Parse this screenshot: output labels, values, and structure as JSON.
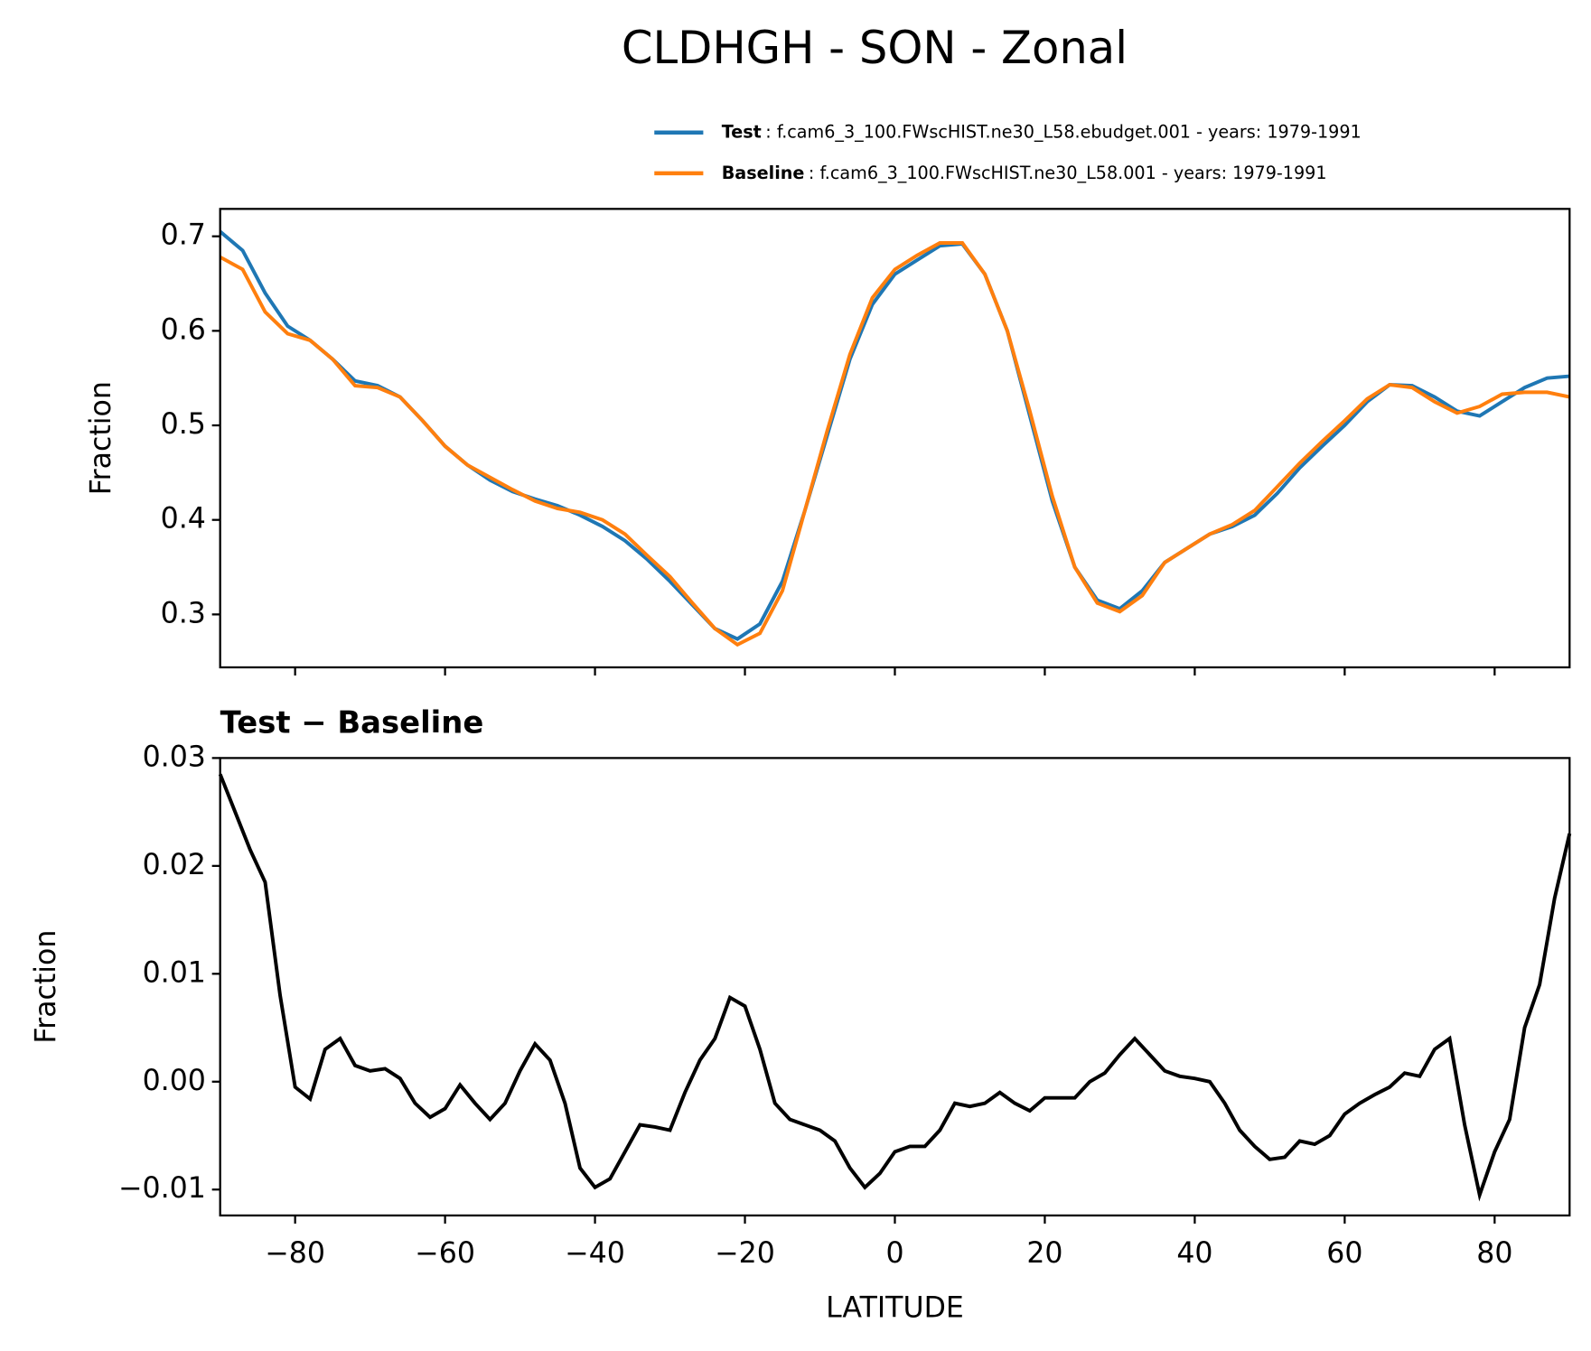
{
  "title": "CLDHGH - SON - Zonal",
  "chart_data": [
    {
      "type": "line",
      "ylabel": "Fraction",
      "legend": "upper right",
      "x": [
        -90,
        -87,
        -84,
        -81,
        -78,
        -75,
        -72,
        -69,
        -66,
        -63,
        -60,
        -57,
        -54,
        -51,
        -48,
        -45,
        -42,
        -39,
        -36,
        -33,
        -30,
        -27,
        -24,
        -21,
        -18,
        -15,
        -12,
        -9,
        -6,
        -3,
        0,
        3,
        6,
        9,
        12,
        15,
        18,
        21,
        24,
        27,
        30,
        33,
        36,
        39,
        42,
        45,
        48,
        51,
        54,
        57,
        60,
        63,
        66,
        69,
        72,
        75,
        78,
        81,
        84,
        87,
        90
      ],
      "series": [
        {
          "name": "Test",
          "description": ": f.cam6_3_100.FWscHIST.ne30_L58.ebudget.001 - years: 1979-1991",
          "color": "#1f77b4",
          "values": [
            0.705,
            0.685,
            0.64,
            0.605,
            0.59,
            0.57,
            0.547,
            0.542,
            0.53,
            0.505,
            0.478,
            0.458,
            0.442,
            0.43,
            0.422,
            0.415,
            0.405,
            0.393,
            0.378,
            0.358,
            0.335,
            0.31,
            0.285,
            0.274,
            0.29,
            0.335,
            0.41,
            0.49,
            0.57,
            0.628,
            0.66,
            0.675,
            0.69,
            0.692,
            0.66,
            0.6,
            0.51,
            0.42,
            0.35,
            0.315,
            0.306,
            0.325,
            0.355,
            0.37,
            0.385,
            0.393,
            0.405,
            0.428,
            0.455,
            0.478,
            0.5,
            0.525,
            0.543,
            0.542,
            0.53,
            0.515,
            0.51,
            0.525,
            0.54,
            0.55,
            0.552
          ]
        },
        {
          "name": "Baseline",
          "description": ": f.cam6_3_100.FWscHIST.ne30_L58.001 - years: 1979-1991",
          "color": "#ff7f0e",
          "values": [
            0.678,
            0.665,
            0.62,
            0.597,
            0.59,
            0.57,
            0.542,
            0.54,
            0.53,
            0.505,
            0.478,
            0.458,
            0.445,
            0.432,
            0.42,
            0.412,
            0.408,
            0.4,
            0.385,
            0.362,
            0.34,
            0.312,
            0.285,
            0.268,
            0.28,
            0.325,
            0.41,
            0.495,
            0.575,
            0.635,
            0.665,
            0.68,
            0.693,
            0.693,
            0.66,
            0.6,
            0.515,
            0.425,
            0.35,
            0.312,
            0.303,
            0.32,
            0.355,
            0.37,
            0.385,
            0.395,
            0.41,
            0.435,
            0.46,
            0.483,
            0.505,
            0.528,
            0.543,
            0.54,
            0.525,
            0.513,
            0.52,
            0.533,
            0.535,
            0.535,
            0.53
          ]
        }
      ],
      "xlim": [
        -90,
        90
      ],
      "xticks": [
        -80,
        -60,
        -40,
        -20,
        0,
        20,
        40,
        60,
        80
      ],
      "ylim": [
        0.244,
        0.729
      ],
      "yticks": [
        0.3,
        0.4,
        0.5,
        0.6,
        0.7
      ]
    },
    {
      "type": "line",
      "title": "Test − Baseline",
      "ylabel": "Fraction",
      "xlabel": "LATITUDE",
      "x": [
        -90,
        -88,
        -86,
        -84,
        -82,
        -80,
        -78,
        -76,
        -74,
        -72,
        -70,
        -68,
        -66,
        -64,
        -62,
        -60,
        -58,
        -56,
        -54,
        -52,
        -50,
        -48,
        -46,
        -44,
        -42,
        -40,
        -38,
        -36,
        -34,
        -32,
        -30,
        -28,
        -26,
        -24,
        -22,
        -20,
        -18,
        -16,
        -14,
        -12,
        -10,
        -8,
        -6,
        -4,
        -2,
        0,
        2,
        4,
        6,
        8,
        10,
        12,
        14,
        16,
        18,
        20,
        22,
        24,
        26,
        28,
        30,
        32,
        34,
        36,
        38,
        40,
        42,
        44,
        46,
        48,
        50,
        52,
        54,
        56,
        58,
        60,
        62,
        64,
        66,
        68,
        70,
        72,
        74,
        76,
        78,
        80,
        82,
        84,
        86,
        88,
        90
      ],
      "series": [
        {
          "color": "#000000",
          "values": [
            0.0285,
            0.025,
            0.0215,
            0.0185,
            0.008,
            -0.0005,
            -0.0016,
            0.003,
            0.004,
            0.0015,
            0.001,
            0.0012,
            0.0003,
            -0.002,
            -0.0033,
            -0.0025,
            -0.0003,
            -0.002,
            -0.0035,
            -0.002,
            0.001,
            0.0035,
            0.002,
            -0.002,
            -0.008,
            -0.0098,
            -0.009,
            -0.0065,
            -0.004,
            -0.0042,
            -0.0045,
            -0.001,
            0.002,
            0.004,
            0.0078,
            0.007,
            0.003,
            -0.002,
            -0.0035,
            -0.004,
            -0.0045,
            -0.0055,
            -0.008,
            -0.0098,
            -0.0085,
            -0.0065,
            -0.006,
            -0.006,
            -0.0045,
            -0.002,
            -0.0023,
            -0.002,
            -0.001,
            -0.002,
            -0.0027,
            -0.0015,
            -0.0015,
            -0.0015,
            0.0,
            0.0008,
            0.0025,
            0.004,
            0.0025,
            0.001,
            0.0005,
            0.0003,
            0.0,
            -0.002,
            -0.0045,
            -0.006,
            -0.0072,
            -0.007,
            -0.0055,
            -0.0058,
            -0.005,
            -0.003,
            -0.002,
            -0.0012,
            -0.0005,
            0.0008,
            0.0005,
            0.003,
            0.004,
            -0.004,
            -0.0105,
            -0.0065,
            -0.0035,
            0.005,
            0.009,
            0.017,
            0.023
          ]
        }
      ],
      "xlim": [
        -90,
        90
      ],
      "xticks": [
        {
          "value": -80,
          "label": "−80"
        },
        {
          "value": -60,
          "label": "−60"
        },
        {
          "value": -40,
          "label": "−40"
        },
        {
          "value": -20,
          "label": "−20"
        },
        0,
        20,
        40,
        60,
        80
      ],
      "ylim": [
        -0.0124,
        0.03
      ],
      "yticks": [
        {
          "value": -0.01,
          "label": "−0.01"
        },
        {
          "value": 0,
          "label": "0.00"
        },
        0.01,
        0.02,
        0.03
      ]
    }
  ]
}
